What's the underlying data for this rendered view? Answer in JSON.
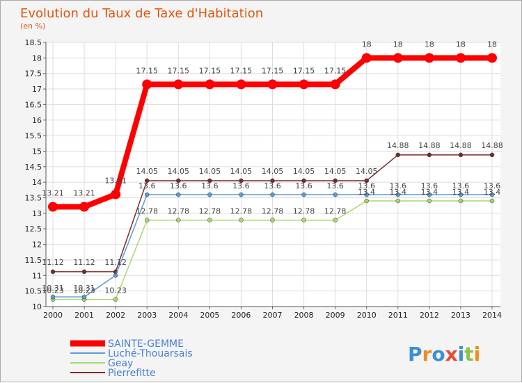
{
  "chart_data": {
    "type": "line",
    "title": "Evolution du Taux de Taxe d'Habitation",
    "subtitle": "(en %)",
    "x": [
      "2000",
      "2001",
      "2002",
      "2003",
      "2004",
      "2005",
      "2006",
      "2007",
      "2008",
      "2009",
      "2010",
      "2011",
      "2012",
      "2013",
      "2014"
    ],
    "ylim": [
      10,
      18.5
    ],
    "yticks": [
      "10",
      "10.5",
      "11",
      "11.5",
      "12",
      "12.5",
      "13",
      "13.5",
      "14",
      "14.5",
      "15",
      "15.5",
      "16",
      "16.5",
      "17",
      "17.5",
      "18",
      "18.5"
    ],
    "grid": true,
    "legend_position": "bottom",
    "series": [
      {
        "name": "SAINTE-GEMME",
        "color": "#ff0000",
        "values": [
          13.21,
          13.21,
          13.61,
          17.15,
          17.15,
          17.15,
          17.15,
          17.15,
          17.15,
          17.15,
          18,
          18,
          18,
          18,
          18
        ],
        "labels": [
          "13.21",
          "13.21",
          "13.61",
          "17.15",
          "17.15",
          "17.15",
          "17.15",
          "17.15",
          "17.15",
          "17.15",
          "18",
          "18",
          "18",
          "18",
          "18"
        ]
      },
      {
        "name": "Luché-Thouarsais",
        "color": "#5b9bd5",
        "values": [
          10.31,
          10.31,
          11,
          13.6,
          13.6,
          13.6,
          13.6,
          13.6,
          13.6,
          13.6,
          13.6,
          13.6,
          13.6,
          13.6,
          13.6
        ],
        "labels": [
          "10.31",
          "10.31",
          "",
          "13.6",
          "13.6",
          "13.6",
          "13.6",
          "13.6",
          "13.6",
          "13.6",
          "13.6",
          "13.6",
          "13.6",
          "13.6",
          "13.6"
        ]
      },
      {
        "name": "Geay",
        "color": "#a6d96a",
        "values": [
          10.23,
          10.23,
          10.23,
          12.78,
          12.78,
          12.78,
          12.78,
          12.78,
          12.78,
          12.78,
          13.4,
          13.4,
          13.4,
          13.4,
          13.4
        ],
        "labels": [
          "10.23",
          "10.23",
          "10.23",
          "12.78",
          "12.78",
          "12.78",
          "12.78",
          "12.78",
          "12.78",
          "12.78",
          "13.4",
          "13.4",
          "13.4",
          "13.4",
          "13.4"
        ]
      },
      {
        "name": "Pierrefitte",
        "color": "#7b2a2a",
        "values": [
          11.12,
          11.12,
          11.12,
          14.05,
          14.05,
          14.05,
          14.05,
          14.05,
          14.05,
          14.05,
          14.05,
          14.88,
          14.88,
          14.88,
          14.88
        ],
        "labels": [
          "11.12",
          "11.12",
          "11.12",
          "14.05",
          "14.05",
          "14.05",
          "14.05",
          "14.05",
          "14.05",
          "14.05",
          "14.05",
          "14.88",
          "14.88",
          "14.88",
          "14.88"
        ]
      }
    ]
  },
  "brand": {
    "text": "Proxiti",
    "letters": [
      "P",
      "r",
      "o",
      "x",
      "i",
      "t",
      "i"
    ],
    "colors": [
      "#3a8fd6",
      "#f08c1e",
      "#3a8fd6",
      "#e84a2f",
      "#3a8fd6",
      "#8bc34a",
      "#f08c1e"
    ]
  }
}
